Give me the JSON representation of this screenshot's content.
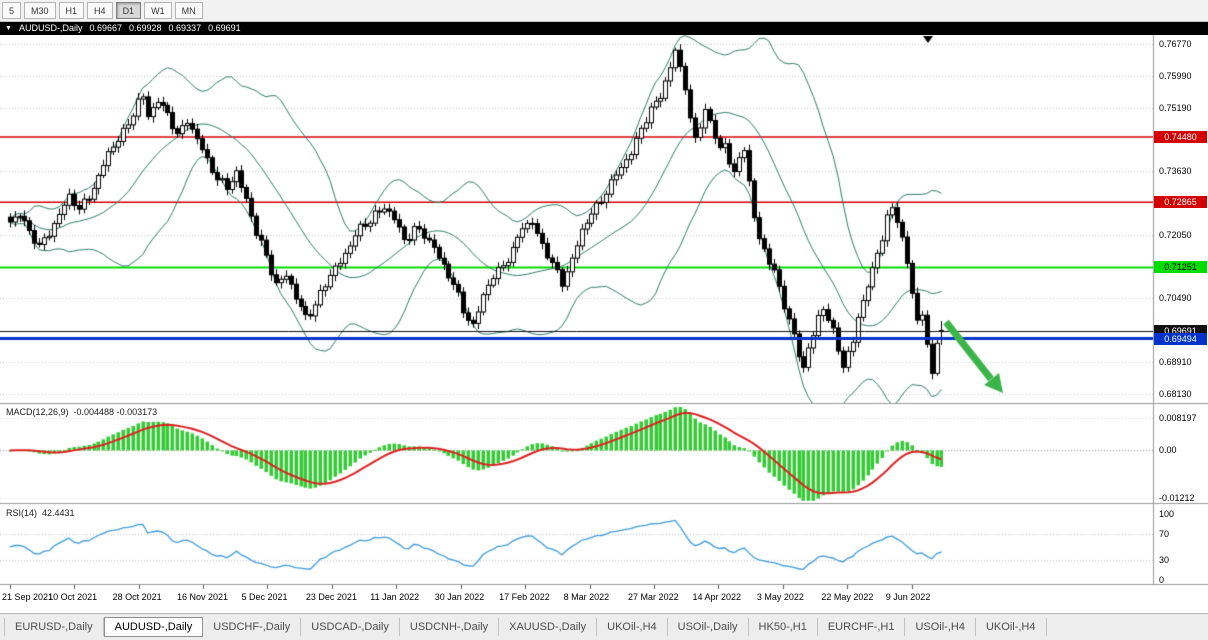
{
  "icons": {
    "collapse": "▼",
    "top_marker": "▼"
  },
  "toolbar": {
    "timeframes": [
      {
        "label": "5",
        "active": false
      },
      {
        "label": "M30",
        "active": false
      },
      {
        "label": "H1",
        "active": false
      },
      {
        "label": "H4",
        "active": false
      },
      {
        "label": "D1",
        "active": true
      },
      {
        "label": "W1",
        "active": false
      },
      {
        "label": "MN",
        "active": false
      }
    ]
  },
  "chart_header": {
    "symbol": "AUDUSD-,Daily",
    "open": "0.69667",
    "high": "0.69928",
    "low": "0.69337",
    "close": "0.69691"
  },
  "price_axis": {
    "grid_labels": [
      "0.76770",
      "0.75990",
      "0.75190",
      "0.73630",
      "0.72050",
      "0.70490",
      "0.68910",
      "0.68130"
    ]
  },
  "levels": [
    {
      "label": "0.74480",
      "price": 0.7448,
      "color": "#d40000",
      "text": "#ffffff",
      "width": 1.5,
      "z": "under"
    },
    {
      "label": "0.72865",
      "price": 0.72865,
      "color": "#d40000",
      "text": "#ffffff",
      "width": 1.5,
      "z": "under"
    },
    {
      "label": "0.71251",
      "price": 0.71251,
      "color": "#00dd00",
      "text": "#000000",
      "width": 2,
      "z": "under"
    },
    {
      "label": "0.69691",
      "price": 0.69691,
      "color": "#111111",
      "text": "#ffffff",
      "width": 1,
      "z": "over"
    },
    {
      "label": "0.69494",
      "price": 0.69494,
      "color": "#0033cc",
      "text": "#ffffff",
      "width": 3,
      "z": "over"
    }
  ],
  "macd_panel": {
    "label": "MACD(12,26,9)",
    "values": "-0.004488 -0.003173",
    "axis_labels": [
      "0.008197",
      "0.00",
      "-0.01212"
    ],
    "axis_values": [
      0.008197,
      0,
      -0.01212
    ]
  },
  "rsi_panel": {
    "label": "RSI(14)",
    "value": "42.4431",
    "axis_labels": [
      "100",
      "70",
      "30",
      "0"
    ],
    "axis_values": [
      100,
      70,
      30,
      0
    ],
    "levels": [
      70,
      30
    ]
  },
  "time_axis": [
    "21 Sep 2021",
    "10 Oct 2021",
    "28 Oct 2021",
    "16 Nov 2021",
    "5 Dec 2021",
    "23 Dec 2021",
    "11 Jan 2022",
    "30 Jan 2022",
    "17 Feb 2022",
    "8 Mar 2022",
    "27 Mar 2022",
    "14 Apr 2022",
    "3 May 2022",
    "22 May 2022",
    "9 Jun 2022"
  ],
  "tabs": [
    {
      "label": "EURUSD-,Daily",
      "active": false
    },
    {
      "label": "AUDUSD-,Daily",
      "active": true
    },
    {
      "label": "USDCHF-,Daily",
      "active": false
    },
    {
      "label": "USDCAD-,Daily",
      "active": false
    },
    {
      "label": "USDCNH-,Daily",
      "active": false
    },
    {
      "label": "XAUUSD-,Daily",
      "active": false
    },
    {
      "label": "UKOil-,H4",
      "active": false
    },
    {
      "label": "USOil-,Daily",
      "active": false
    },
    {
      "label": "HK50-,H1",
      "active": false
    },
    {
      "label": "EURCHF-,H1",
      "active": false
    },
    {
      "label": "USOil-,H4",
      "active": false
    },
    {
      "label": "UKOil-,H4",
      "active": false
    }
  ],
  "annotations": {
    "trend_arrow": {
      "color": "#3bb54a",
      "direction": "down-right"
    }
  },
  "chart_data": {
    "type": "candlestick",
    "symbol": "AUDUSD",
    "timeframe": "Daily",
    "bars": 190,
    "price_range": [
      0.679,
      0.77
    ],
    "overlays": [
      "BollingerBands(20,2)"
    ],
    "bollinger_color": "#2e7d6b",
    "candle_up": "#ffffff",
    "candle_down": "#000000",
    "candle_border": "#000000",
    "macd_hist_color": "#33cc33",
    "macd_signal_color": "#dd2222",
    "rsi_color": "#3e9bdd",
    "last_bar": {
      "open": 0.69667,
      "high": 0.69928,
      "low": 0.69337,
      "close": 0.69691
    },
    "close_anchors": [
      [
        0,
        0.7233
      ],
      [
        2,
        0.7262
      ],
      [
        4,
        0.7215
      ],
      [
        6,
        0.7172
      ],
      [
        8,
        0.721
      ],
      [
        10,
        0.7262
      ],
      [
        12,
        0.7295
      ],
      [
        14,
        0.727
      ],
      [
        16,
        0.7305
      ],
      [
        18,
        0.7345
      ],
      [
        20,
        0.7405
      ],
      [
        22,
        0.7448
      ],
      [
        24,
        0.7478
      ],
      [
        26,
        0.753
      ],
      [
        27,
        0.7546
      ],
      [
        28,
        0.7505
      ],
      [
        30,
        0.754
      ],
      [
        32,
        0.7498
      ],
      [
        34,
        0.7455
      ],
      [
        36,
        0.7492
      ],
      [
        38,
        0.7438
      ],
      [
        40,
        0.739
      ],
      [
        42,
        0.735
      ],
      [
        44,
        0.732
      ],
      [
        46,
        0.7355
      ],
      [
        48,
        0.73
      ],
      [
        50,
        0.721
      ],
      [
        52,
        0.715
      ],
      [
        54,
        0.7085
      ],
      [
        56,
        0.711
      ],
      [
        58,
        0.7045
      ],
      [
        60,
        0.7005
      ],
      [
        62,
        0.7035
      ],
      [
        64,
        0.708
      ],
      [
        66,
        0.7125
      ],
      [
        68,
        0.716
      ],
      [
        70,
        0.7205
      ],
      [
        72,
        0.7228
      ],
      [
        74,
        0.7262
      ],
      [
        76,
        0.727
      ],
      [
        78,
        0.7245
      ],
      [
        80,
        0.7195
      ],
      [
        82,
        0.7222
      ],
      [
        84,
        0.72
      ],
      [
        86,
        0.7178
      ],
      [
        88,
        0.713
      ],
      [
        90,
        0.708
      ],
      [
        92,
        0.702
      ],
      [
        94,
        0.6985
      ],
      [
        96,
        0.7052
      ],
      [
        98,
        0.7102
      ],
      [
        100,
        0.7135
      ],
      [
        102,
        0.7165
      ],
      [
        104,
        0.7222
      ],
      [
        106,
        0.7242
      ],
      [
        108,
        0.718
      ],
      [
        110,
        0.713
      ],
      [
        112,
        0.709
      ],
      [
        114,
        0.7148
      ],
      [
        116,
        0.721
      ],
      [
        118,
        0.7262
      ],
      [
        120,
        0.7295
      ],
      [
        122,
        0.733
      ],
      [
        124,
        0.7372
      ],
      [
        126,
        0.7415
      ],
      [
        128,
        0.7465
      ],
      [
        130,
        0.7512
      ],
      [
        132,
        0.7555
      ],
      [
        134,
        0.762
      ],
      [
        135,
        0.7658
      ],
      [
        136,
        0.7612
      ],
      [
        137,
        0.7572
      ],
      [
        138,
        0.7498
      ],
      [
        139,
        0.7442
      ],
      [
        140,
        0.748
      ],
      [
        141,
        0.7515
      ],
      [
        142,
        0.7478
      ],
      [
        143,
        0.7445
      ],
      [
        144,
        0.742
      ],
      [
        145,
        0.7438
      ],
      [
        146,
        0.739
      ],
      [
        147,
        0.7352
      ],
      [
        148,
        0.7395
      ],
      [
        149,
        0.7418
      ],
      [
        150,
        0.733
      ],
      [
        151,
        0.7252
      ],
      [
        152,
        0.7205
      ],
      [
        153,
        0.717
      ],
      [
        154,
        0.7135
      ],
      [
        155,
        0.711
      ],
      [
        156,
        0.7072
      ],
      [
        157,
        0.7035
      ],
      [
        158,
        0.6998
      ],
      [
        159,
        0.6958
      ],
      [
        160,
        0.6912
      ],
      [
        161,
        0.6872
      ],
      [
        162,
        0.692
      ],
      [
        163,
        0.6958
      ],
      [
        164,
        0.7005
      ],
      [
        165,
        0.7032
      ],
      [
        166,
        0.6998
      ],
      [
        167,
        0.6962
      ],
      [
        168,
        0.692
      ],
      [
        169,
        0.688
      ],
      [
        170,
        0.6912
      ],
      [
        171,
        0.6948
      ],
      [
        172,
        0.7005
      ],
      [
        173,
        0.7042
      ],
      [
        174,
        0.7078
      ],
      [
        175,
        0.7112
      ],
      [
        176,
        0.716
      ],
      [
        177,
        0.7205
      ],
      [
        178,
        0.7252
      ],
      [
        179,
        0.7272
      ],
      [
        180,
        0.724
      ],
      [
        181,
        0.7192
      ],
      [
        182,
        0.7135
      ],
      [
        183,
        0.7062
      ],
      [
        184,
        0.6995
      ],
      [
        185,
        0.702
      ],
      [
        186,
        0.6932
      ],
      [
        187,
        0.685
      ],
      [
        188,
        0.6942
      ],
      [
        189,
        0.6969
      ]
    ]
  }
}
